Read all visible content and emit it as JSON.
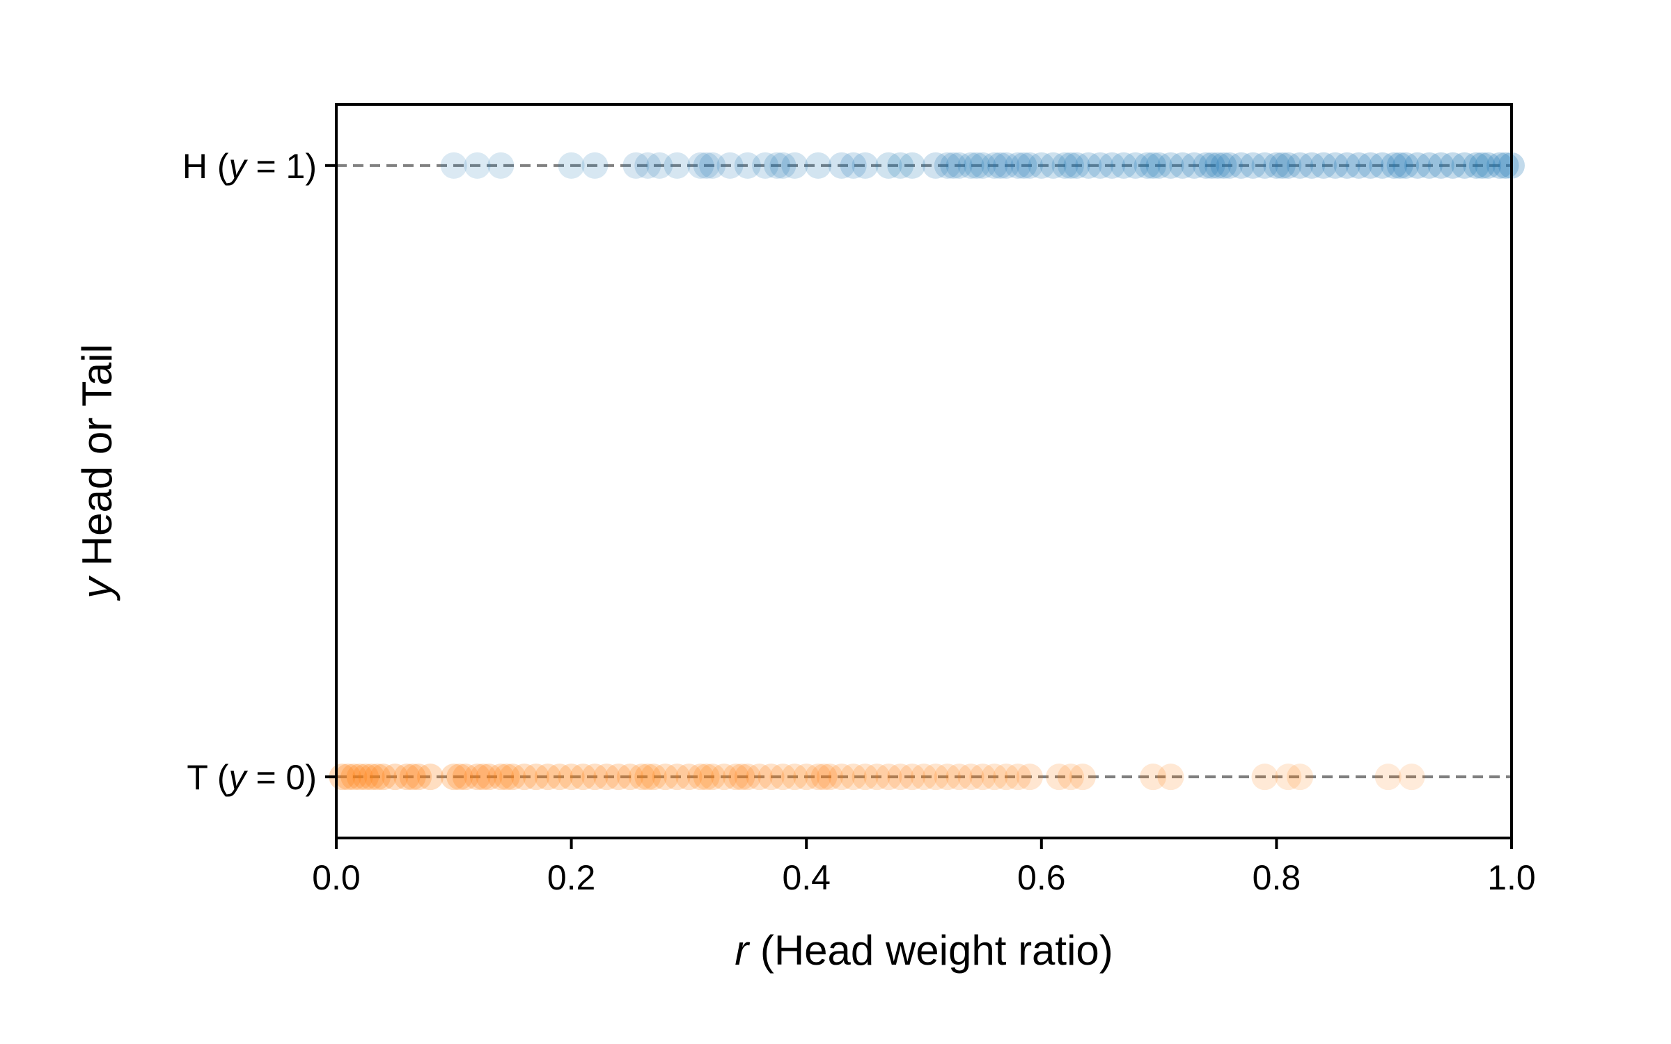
{
  "chart_data": {
    "type": "scatter",
    "xlabel_var": "r",
    "xlabel_text": " (Head weight ratio)",
    "ylabel_var": "y",
    "ylabel_text": " Head or Tail",
    "xlim": [
      0.0,
      1.0
    ],
    "ylim": [
      -0.1,
      1.1
    ],
    "grid": false,
    "x_ticks": [
      {
        "value": 0.0,
        "label": "0.0"
      },
      {
        "value": 0.2,
        "label": "0.2"
      },
      {
        "value": 0.4,
        "label": "0.4"
      },
      {
        "value": 0.6,
        "label": "0.6"
      },
      {
        "value": 0.8,
        "label": "0.8"
      },
      {
        "value": 1.0,
        "label": "1.0"
      }
    ],
    "y_ticks": [
      {
        "value": 1,
        "label_pre": "H (",
        "label_var": "y",
        "label_post": " = 1)"
      },
      {
        "value": 0,
        "label_pre": "T (",
        "label_var": "y",
        "label_post": " = 0)"
      }
    ],
    "reference_lines": [
      {
        "y": 1,
        "style": "dashed",
        "color": "#808080"
      },
      {
        "y": 0,
        "style": "dashed",
        "color": "#808080"
      }
    ],
    "series": [
      {
        "y": 1,
        "color": "#1f77b4",
        "x": [
          0.1,
          0.12,
          0.14,
          0.2,
          0.22,
          0.255,
          0.265,
          0.275,
          0.29,
          0.31,
          0.315,
          0.32,
          0.335,
          0.35,
          0.365,
          0.375,
          0.38,
          0.39,
          0.41,
          0.43,
          0.44,
          0.45,
          0.47,
          0.48,
          0.49,
          0.51,
          0.52,
          0.525,
          0.53,
          0.54,
          0.545,
          0.55,
          0.56,
          0.565,
          0.57,
          0.58,
          0.585,
          0.59,
          0.6,
          0.61,
          0.62,
          0.625,
          0.63,
          0.64,
          0.65,
          0.66,
          0.67,
          0.68,
          0.69,
          0.695,
          0.7,
          0.71,
          0.72,
          0.73,
          0.74,
          0.745,
          0.75,
          0.755,
          0.76,
          0.77,
          0.78,
          0.79,
          0.8,
          0.805,
          0.81,
          0.82,
          0.83,
          0.84,
          0.85,
          0.86,
          0.87,
          0.88,
          0.89,
          0.9,
          0.905,
          0.91,
          0.92,
          0.93,
          0.94,
          0.95,
          0.96,
          0.97,
          0.975,
          0.98,
          0.99,
          0.995,
          1.0
        ]
      },
      {
        "y": 0,
        "color": "#ff7f0e",
        "x": [
          0.005,
          0.01,
          0.015,
          0.02,
          0.025,
          0.03,
          0.035,
          0.04,
          0.05,
          0.06,
          0.065,
          0.07,
          0.08,
          0.1,
          0.105,
          0.11,
          0.12,
          0.125,
          0.13,
          0.14,
          0.145,
          0.15,
          0.16,
          0.17,
          0.18,
          0.19,
          0.2,
          0.21,
          0.22,
          0.23,
          0.24,
          0.25,
          0.26,
          0.265,
          0.27,
          0.28,
          0.29,
          0.3,
          0.31,
          0.315,
          0.32,
          0.33,
          0.34,
          0.345,
          0.35,
          0.36,
          0.37,
          0.38,
          0.39,
          0.4,
          0.41,
          0.415,
          0.42,
          0.43,
          0.44,
          0.45,
          0.46,
          0.47,
          0.48,
          0.49,
          0.5,
          0.51,
          0.52,
          0.53,
          0.54,
          0.55,
          0.56,
          0.57,
          0.58,
          0.59,
          0.615,
          0.625,
          0.635,
          0.695,
          0.71,
          0.79,
          0.81,
          0.82,
          0.895,
          0.915
        ]
      }
    ]
  }
}
